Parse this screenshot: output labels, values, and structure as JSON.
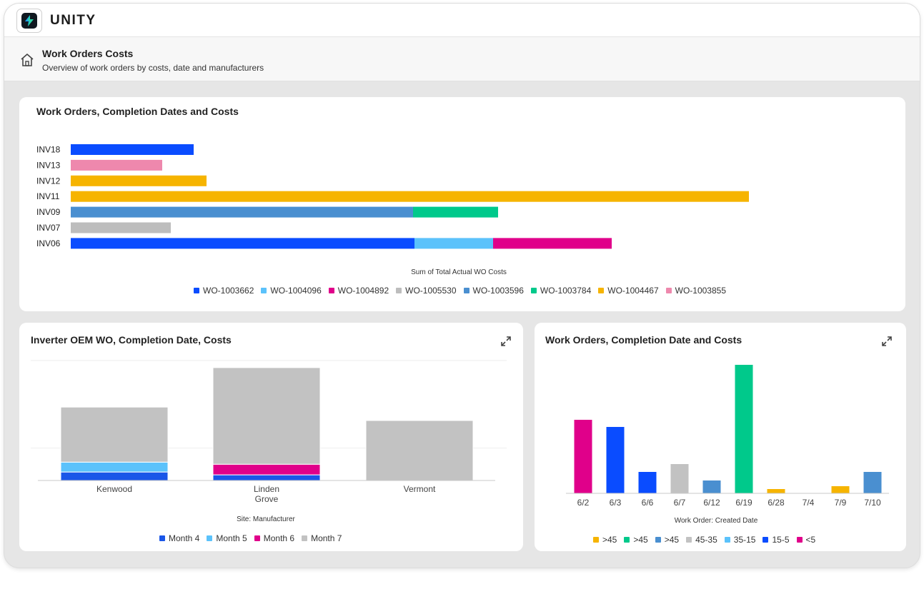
{
  "app": {
    "brand": "UNITY"
  },
  "page": {
    "title": "Work Orders Costs",
    "subtitle": "Overview of work orders by costs, date and manufacturers"
  },
  "icons": {
    "home": "home-icon",
    "expand": "expand-icon",
    "logo": "lightning-bolt-icon"
  },
  "colors": {
    "frame_bg": "#e6e6e6",
    "card_bg": "#ffffff",
    "accent_logo": "#2bd4a8"
  },
  "chart_data": [
    {
      "type": "bar",
      "orientation": "horizontal",
      "stacked": true,
      "title": "Work Orders, Completion Dates and Costs",
      "xlabel": "Sum of Total Actual WO Costs",
      "ylabel": "",
      "categories": [
        "INV18",
        "INV13",
        "INV12",
        "INV11",
        "INV09",
        "INV07",
        "INV06"
      ],
      "series": [
        {
          "name": "WO-1003662",
          "color": "#0a4cff",
          "values": [
            172,
            0,
            0,
            0,
            0,
            0,
            481
          ]
        },
        {
          "name": "WO-1004096",
          "color": "#5bc2fb",
          "values": [
            0,
            0,
            0,
            0,
            0,
            0,
            110
          ]
        },
        {
          "name": "WO-1004892",
          "color": "#e0008a",
          "values": [
            0,
            0,
            0,
            0,
            0,
            0,
            166
          ]
        },
        {
          "name": "WO-1005530",
          "color": "#bdbdbd",
          "values": [
            0,
            0,
            0,
            0,
            0,
            140,
            0
          ]
        },
        {
          "name": "WO-1003596",
          "color": "#4a8fd0",
          "values": [
            0,
            0,
            0,
            0,
            479,
            0,
            0
          ]
        },
        {
          "name": "WO-1003784",
          "color": "#00c98b",
          "values": [
            0,
            0,
            0,
            0,
            119,
            0,
            0
          ]
        },
        {
          "name": "WO-1004467",
          "color": "#f6b400",
          "values": [
            0,
            0,
            190,
            949,
            0,
            0,
            0
          ]
        },
        {
          "name": "WO-1003855",
          "color": "#ee88ad",
          "values": [
            0,
            128,
            0,
            0,
            0,
            0,
            0
          ]
        }
      ],
      "xlim": [
        0,
        1000
      ],
      "grid": false,
      "legend": "bottom"
    },
    {
      "type": "bar",
      "stacked": true,
      "title": "Inverter OEM WO, Completion Date, Costs",
      "xlabel": "Site: Manufacturer",
      "ylabel": "",
      "categories": [
        "Kenwood",
        "Linden Grove",
        "Vermont"
      ],
      "series": [
        {
          "name": "Month 4",
          "color": "#1a56e8",
          "values": [
            12,
            8,
            0
          ]
        },
        {
          "name": "Month 5",
          "color": "#5bc2fb",
          "values": [
            14,
            0,
            0
          ]
        },
        {
          "name": "Month 6",
          "color": "#e0008a",
          "values": [
            0,
            15,
            0
          ]
        },
        {
          "name": "Month 7",
          "color": "#c2c2c2",
          "values": [
            78,
            137,
            85
          ]
        }
      ],
      "ylim": [
        0,
        170
      ],
      "grid": true,
      "legend": "bottom"
    },
    {
      "type": "bar",
      "title": "Work Orders, Completion Date and Costs",
      "xlabel": "Work Order: Created Date",
      "ylabel": "",
      "categories": [
        "6/2",
        "6/3",
        "6/6",
        "6/7",
        "6/12",
        "6/19",
        "6/28",
        "7/4",
        "7/9",
        "7/10"
      ],
      "values": [
        103,
        93,
        30,
        41,
        18,
        180,
        6,
        0,
        10,
        30
      ],
      "bar_colors": [
        "#e0008a",
        "#0a4cff",
        "#0a4cff",
        "#c2c2c2",
        "#4a8fd0",
        "#00c98b",
        "#f6b400",
        "#f6b400",
        "#f6b400",
        "#4a8fd0"
      ],
      "legend_entries": [
        {
          "name": ">45",
          "color": "#f6b400"
        },
        {
          "name": ">45",
          "color": "#00c98b"
        },
        {
          "name": ">45",
          "color": "#4a8fd0"
        },
        {
          "name": "45-35",
          "color": "#c2c2c2"
        },
        {
          "name": "35-15",
          "color": "#5bc2fb"
        },
        {
          "name": "15-5",
          "color": "#0a4cff"
        },
        {
          "name": "<5",
          "color": "#e0008a"
        }
      ],
      "ylim": [
        0,
        185
      ],
      "grid": false,
      "legend": "bottom"
    }
  ]
}
